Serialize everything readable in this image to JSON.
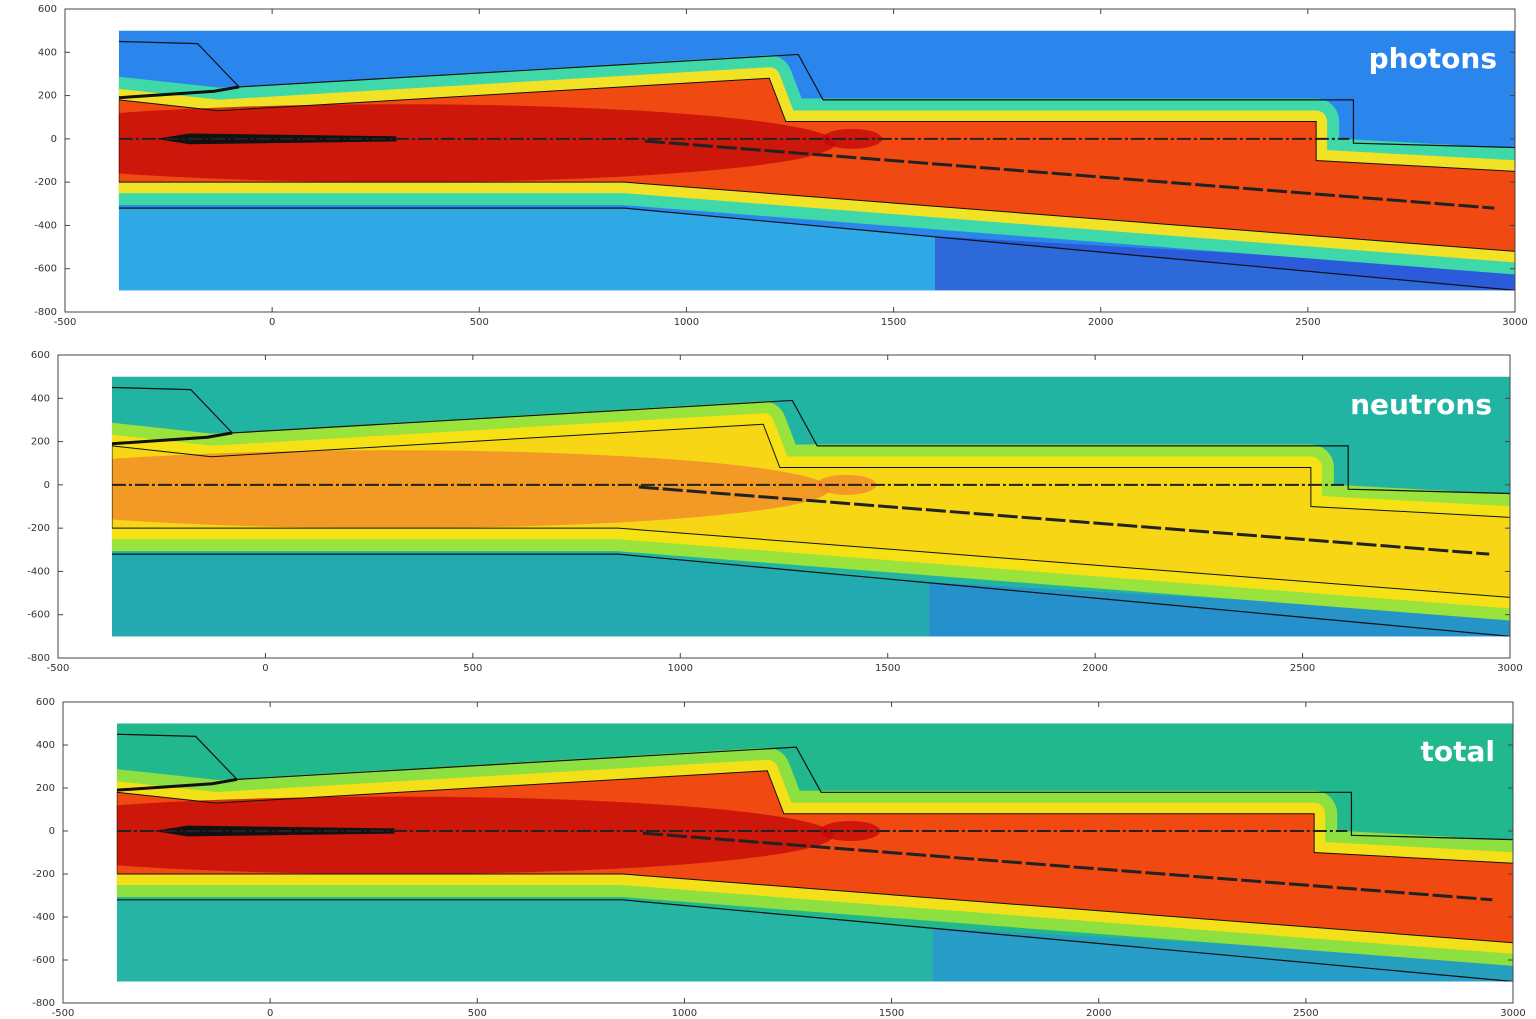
{
  "chart_data": [
    {
      "type": "heatmap",
      "annotation": "photons",
      "xlim": [
        -500,
        3000
      ],
      "ylim": [
        -800,
        600
      ],
      "xticks": [
        -500,
        0,
        500,
        1000,
        1500,
        2000,
        2500,
        3000
      ],
      "yticks": [
        -800,
        -600,
        -400,
        -200,
        0,
        200,
        400,
        600
      ]
    },
    {
      "type": "heatmap",
      "annotation": "neutrons",
      "xlim": [
        -500,
        3000
      ],
      "ylim": [
        -800,
        600
      ],
      "xticks": [
        -500,
        0,
        500,
        1000,
        1500,
        2000,
        2500,
        3000
      ],
      "yticks": [
        -800,
        -600,
        -400,
        -200,
        0,
        200,
        400,
        600
      ]
    },
    {
      "type": "heatmap",
      "annotation": "total",
      "xlim": [
        -500,
        3000
      ],
      "ylim": [
        -800,
        600
      ],
      "xticks": [
        -500,
        0,
        500,
        1000,
        1500,
        2000,
        2500,
        3000
      ],
      "yticks": [
        -800,
        -600,
        -400,
        -200,
        0,
        200,
        400,
        600
      ]
    }
  ]
}
